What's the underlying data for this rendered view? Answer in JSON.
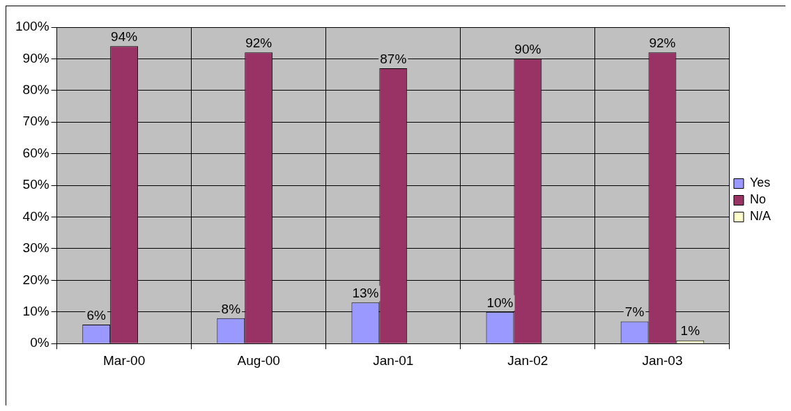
{
  "chart_data": {
    "type": "bar",
    "categories": [
      "Mar-00",
      "Aug-00",
      "Jan-01",
      "Jan-02",
      "Jan-03"
    ],
    "series": [
      {
        "name": "Yes",
        "color": "#9999ff",
        "values": [
          6,
          8,
          13,
          10,
          7
        ],
        "value_labels": [
          "6%",
          "8%",
          "13%",
          "10%",
          "7%"
        ]
      },
      {
        "name": "No",
        "color": "#993366",
        "values": [
          94,
          92,
          87,
          90,
          92
        ],
        "value_labels": [
          "94%",
          "92%",
          "87%",
          "90%",
          "92%"
        ]
      },
      {
        "name": "N/A",
        "color": "#ffffcc",
        "values": [
          null,
          null,
          null,
          null,
          1
        ],
        "value_labels": [
          null,
          null,
          null,
          null,
          "1%"
        ]
      }
    ],
    "ylim": [
      0,
      100
    ],
    "yticks": [
      {
        "value": 0,
        "label": "0%"
      },
      {
        "value": 10,
        "label": "10%"
      },
      {
        "value": 20,
        "label": "20%"
      },
      {
        "value": 30,
        "label": "30%"
      },
      {
        "value": 40,
        "label": "40%"
      },
      {
        "value": 50,
        "label": "50%"
      },
      {
        "value": 60,
        "label": "60%"
      },
      {
        "value": 70,
        "label": "70%"
      },
      {
        "value": 80,
        "label": "80%"
      },
      {
        "value": 90,
        "label": "90%"
      },
      {
        "value": 100,
        "label": "100%"
      }
    ],
    "grid": true,
    "legend": "right"
  }
}
